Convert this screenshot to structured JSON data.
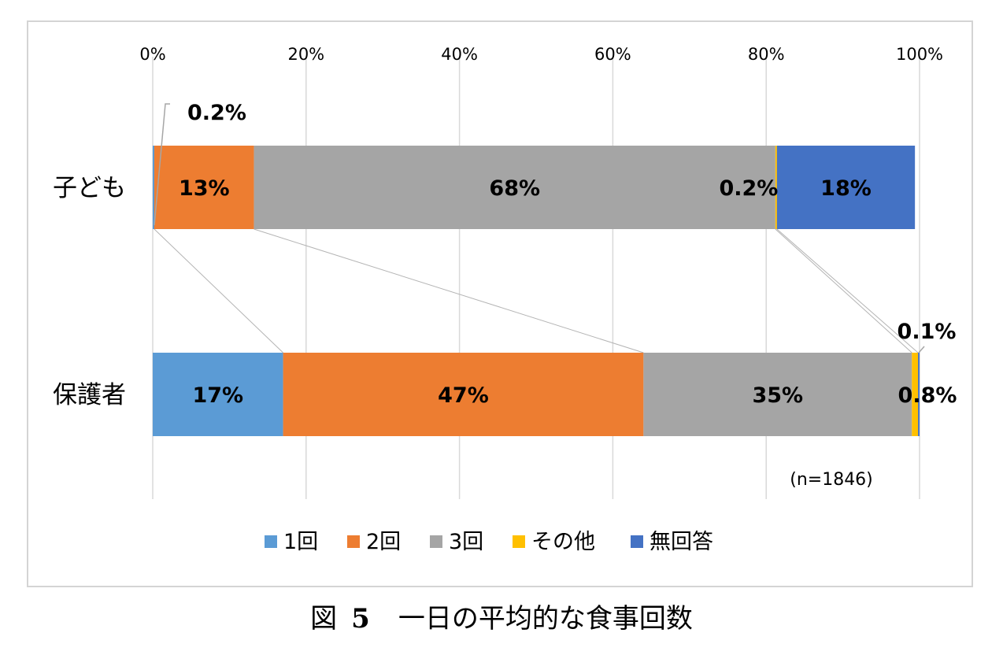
{
  "chart_data": {
    "type": "bar",
    "orientation": "horizontal",
    "stacked": "percent",
    "categories": [
      "子ども",
      "保護者"
    ],
    "x_ticks": [
      "0%",
      "20%",
      "40%",
      "60%",
      "80%",
      "100%"
    ],
    "xlim": [
      0,
      100
    ],
    "grid": true,
    "legend_position": "bottom",
    "series": [
      {
        "name": "1回",
        "color": "#5b9bd5",
        "values": [
          0.2,
          17
        ],
        "labels": [
          "0.2%",
          "17%"
        ]
      },
      {
        "name": "2回",
        "color": "#ed7d31",
        "values": [
          13,
          47
        ],
        "labels": [
          "13%",
          "47%"
        ]
      },
      {
        "name": "3回",
        "color": "#a5a5a5",
        "values": [
          68,
          35
        ],
        "labels": [
          "68%",
          "35%"
        ]
      },
      {
        "name": "その他",
        "color": "#ffc000",
        "values": [
          0.2,
          0.8
        ],
        "labels": [
          "0.2%",
          "0.8%"
        ]
      },
      {
        "name": "無回答",
        "color": "#4472c4",
        "values": [
          18,
          0.1
        ],
        "labels": [
          "18%",
          "0.1%"
        ]
      }
    ],
    "annotation": "(n=1846)"
  },
  "caption": {
    "prefix": "図",
    "number": "5",
    "title": "一日の平均的な食事回数"
  }
}
